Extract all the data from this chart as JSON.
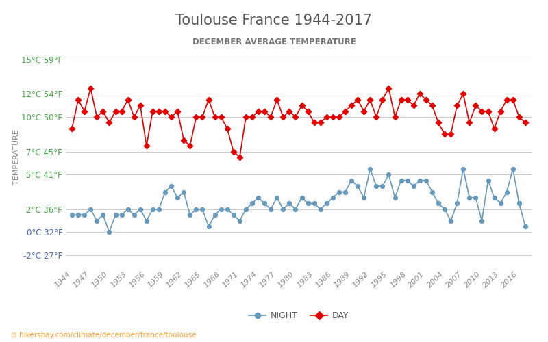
{
  "title": "Toulouse France 1944-2017",
  "subtitle": "DECEMBER AVERAGE TEMPERATURE",
  "ylabel": "TEMPERATURE",
  "watermark": "hikersbay.com/climate/december/france/toulouse",
  "years": [
    1944,
    1945,
    1946,
    1947,
    1948,
    1949,
    1950,
    1951,
    1952,
    1953,
    1954,
    1955,
    1956,
    1957,
    1958,
    1959,
    1960,
    1961,
    1962,
    1963,
    1964,
    1965,
    1966,
    1967,
    1968,
    1969,
    1970,
    1971,
    1972,
    1973,
    1974,
    1975,
    1976,
    1977,
    1978,
    1979,
    1980,
    1981,
    1982,
    1983,
    1984,
    1985,
    1986,
    1987,
    1988,
    1989,
    1990,
    1991,
    1992,
    1993,
    1994,
    1995,
    1996,
    1997,
    1998,
    1999,
    2000,
    2001,
    2002,
    2003,
    2004,
    2005,
    2006,
    2007,
    2008,
    2009,
    2010,
    2011,
    2012,
    2013,
    2014,
    2015,
    2016,
    2017
  ],
  "day_temps": [
    9.0,
    11.5,
    10.5,
    12.5,
    10.0,
    10.5,
    9.5,
    10.5,
    10.5,
    11.5,
    10.0,
    11.0,
    7.5,
    10.5,
    10.5,
    10.5,
    10.0,
    10.5,
    8.0,
    7.5,
    10.0,
    10.0,
    11.5,
    10.0,
    10.0,
    9.0,
    7.0,
    6.5,
    10.0,
    10.0,
    10.5,
    10.5,
    10.0,
    11.5,
    10.0,
    10.5,
    10.0,
    11.0,
    10.5,
    9.5,
    9.5,
    10.0,
    10.0,
    10.0,
    10.5,
    11.0,
    11.5,
    10.5,
    11.5,
    10.0,
    11.5,
    12.5,
    10.0,
    11.5,
    11.5,
    11.0,
    12.0,
    11.5,
    11.0,
    9.5,
    8.5,
    8.5,
    11.0,
    12.0,
    9.5,
    11.0,
    10.5,
    10.5,
    9.0,
    10.5,
    11.5,
    11.5,
    10.0,
    9.5
  ],
  "night_temps": [
    1.5,
    1.5,
    1.5,
    2.0,
    1.0,
    1.5,
    0.0,
    1.5,
    1.5,
    2.0,
    1.5,
    2.0,
    1.0,
    2.0,
    2.0,
    3.5,
    4.0,
    3.0,
    3.5,
    1.5,
    2.0,
    2.0,
    0.5,
    1.5,
    2.0,
    2.0,
    1.5,
    1.0,
    2.0,
    2.5,
    3.0,
    2.5,
    2.0,
    3.0,
    2.0,
    2.5,
    2.0,
    3.0,
    2.5,
    2.5,
    2.0,
    2.5,
    3.0,
    3.5,
    3.5,
    4.5,
    4.0,
    3.0,
    5.5,
    4.0,
    4.0,
    5.0,
    3.0,
    4.5,
    4.5,
    4.0,
    4.5,
    4.5,
    3.5,
    2.5,
    2.0,
    1.0,
    2.5,
    5.5,
    3.0,
    3.0,
    1.0,
    4.5,
    3.0,
    2.5,
    3.5,
    5.5,
    2.5,
    0.5
  ],
  "day_color": "#e00000",
  "night_color": "#6699bb",
  "title_color": "#555555",
  "subtitle_color": "#777777",
  "ylabel_color": "#888888",
  "grid_color": "#cccccc",
  "tick_color_green": "#44aa44",
  "tick_color_blue": "#4466bb",
  "background_color": "#ffffff",
  "yticks_celsius": [
    15,
    12,
    10,
    7,
    5,
    2,
    0,
    -2
  ],
  "yticks_fahrenheit": [
    59,
    54,
    50,
    45,
    41,
    36,
    32,
    27
  ],
  "xmin": 1943,
  "xmax": 2018,
  "ymin": -3,
  "ymax": 16
}
